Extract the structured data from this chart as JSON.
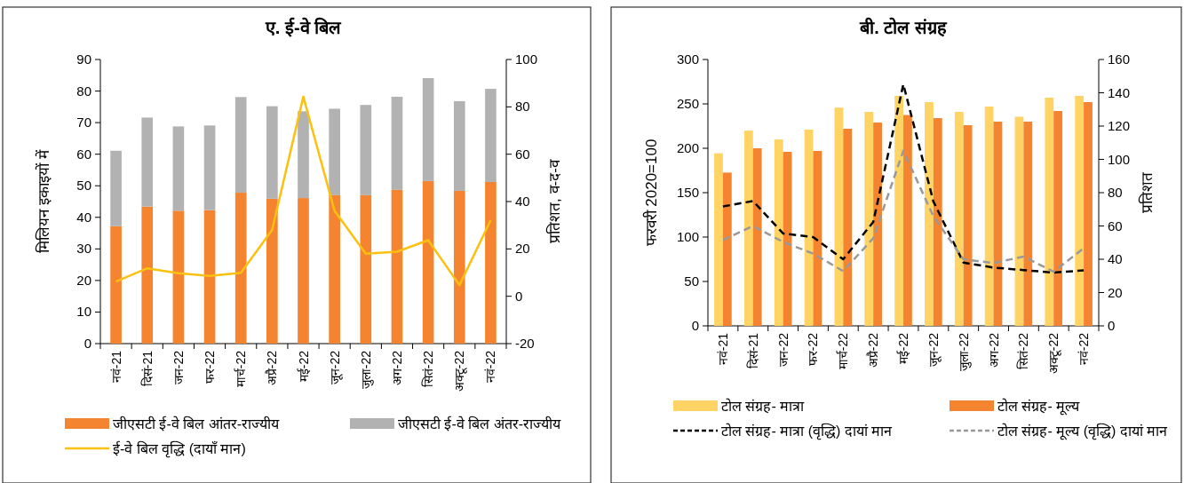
{
  "chart_data": [
    {
      "type": "bar",
      "title": "ए. ई-वे बिल",
      "ylabel": "मिलियन इकाइयों में",
      "y2label": "प्रतिशत, व-द-व",
      "stacked": true,
      "legend": "bottom",
      "grid": false,
      "categories": [
        "नवं-21",
        "दिसं-21",
        "जन-22",
        "फर-22",
        "मार्च-22",
        "अप्रै-22",
        "मई-22",
        "जून-22",
        "जुला-22",
        "अग-22",
        "सितं-22",
        "अक्टू-22",
        "नवं-22"
      ],
      "ylim": [
        0,
        90
      ],
      "yticks": [
        0,
        10,
        20,
        30,
        40,
        50,
        60,
        70,
        80,
        90
      ],
      "y2lim": [
        -20,
        100
      ],
      "y2ticks": [
        -20,
        0,
        20,
        40,
        60,
        80,
        100
      ],
      "series": [
        {
          "name": "जीएसटी ई-वे बिल आंतर-राज्यीय",
          "color": "#f4842f",
          "values": [
            37.2,
            43.4,
            42.1,
            42.3,
            47.8,
            45.9,
            46.1,
            47.0,
            47.0,
            48.7,
            51.5,
            48.4,
            51.2
          ]
        },
        {
          "name": "जीएसटी ई-वे बिल अंतर-राज्यीय",
          "color": "#b2b2b2",
          "values": [
            23.9,
            28.2,
            26.7,
            26.8,
            30.3,
            29.3,
            27.5,
            27.4,
            28.6,
            29.5,
            32.6,
            28.4,
            29.5
          ]
        },
        {
          "name": "ई-वे बिल वृद्धि (दायाँ मान)",
          "type": "line",
          "axis": "y2",
          "line_style": "solid",
          "color": "#fcc010",
          "values": [
            6.2,
            11.8,
            9.7,
            8.6,
            9.9,
            28,
            84.3,
            36.1,
            18,
            18.8,
            23.7,
            4.7,
            32.1
          ]
        }
      ]
    },
    {
      "type": "bar",
      "title": "बी. टोल संग्रह",
      "ylabel": "फरवरी 2020=100",
      "y2label": "प्रतिशत",
      "legend": "bottom",
      "grid": false,
      "categories": [
        "नवं-21",
        "दिसं-21",
        "जन-22",
        "फर-22",
        "मार्च-22",
        "अप्रै-22",
        "मई-22",
        "जून-22",
        "जुला-22",
        "अग-22",
        "सितं-22",
        "अक्टू-22",
        "नवं-22"
      ],
      "ylim": [
        0,
        300
      ],
      "yticks": [
        0,
        50,
        100,
        150,
        200,
        250,
        300
      ],
      "y2lim": [
        0,
        160
      ],
      "y2ticks": [
        0,
        20,
        40,
        60,
        80,
        100,
        120,
        140,
        160
      ],
      "series": [
        {
          "name": "टोल संग्रह- मात्रा",
          "color": "#ffd464",
          "values": [
            194.4,
            219.9,
            210,
            221,
            245.8,
            241,
            259,
            252,
            241,
            247,
            235.5,
            257,
            259
          ]
        },
        {
          "name": "टोल संग्रह- मूल्य",
          "color": "#f4842f",
          "values": [
            172.6,
            200,
            196,
            197,
            222,
            229,
            237.5,
            234,
            226,
            230,
            230,
            242,
            252
          ]
        },
        {
          "name": "टोल संग्रह- मात्रा (वृद्धि) दायां मान",
          "type": "line",
          "axis": "y2",
          "line_style": "dashed",
          "color": "#000000",
          "values": [
            71.7,
            75,
            55.5,
            53.3,
            40,
            62.4,
            145.1,
            74.7,
            38,
            35,
            33.5,
            32,
            33.3
          ]
        },
        {
          "name": "टोल संग्रह- मूल्य (वृद्धि) दायां मान",
          "type": "line",
          "axis": "y2",
          "line_style": "dashed",
          "color": "#999999",
          "values": [
            51.6,
            60,
            50.4,
            43.4,
            32.9,
            52.6,
            105.2,
            65.8,
            40,
            37.7,
            41.6,
            32.5,
            46.6
          ]
        }
      ]
    }
  ]
}
